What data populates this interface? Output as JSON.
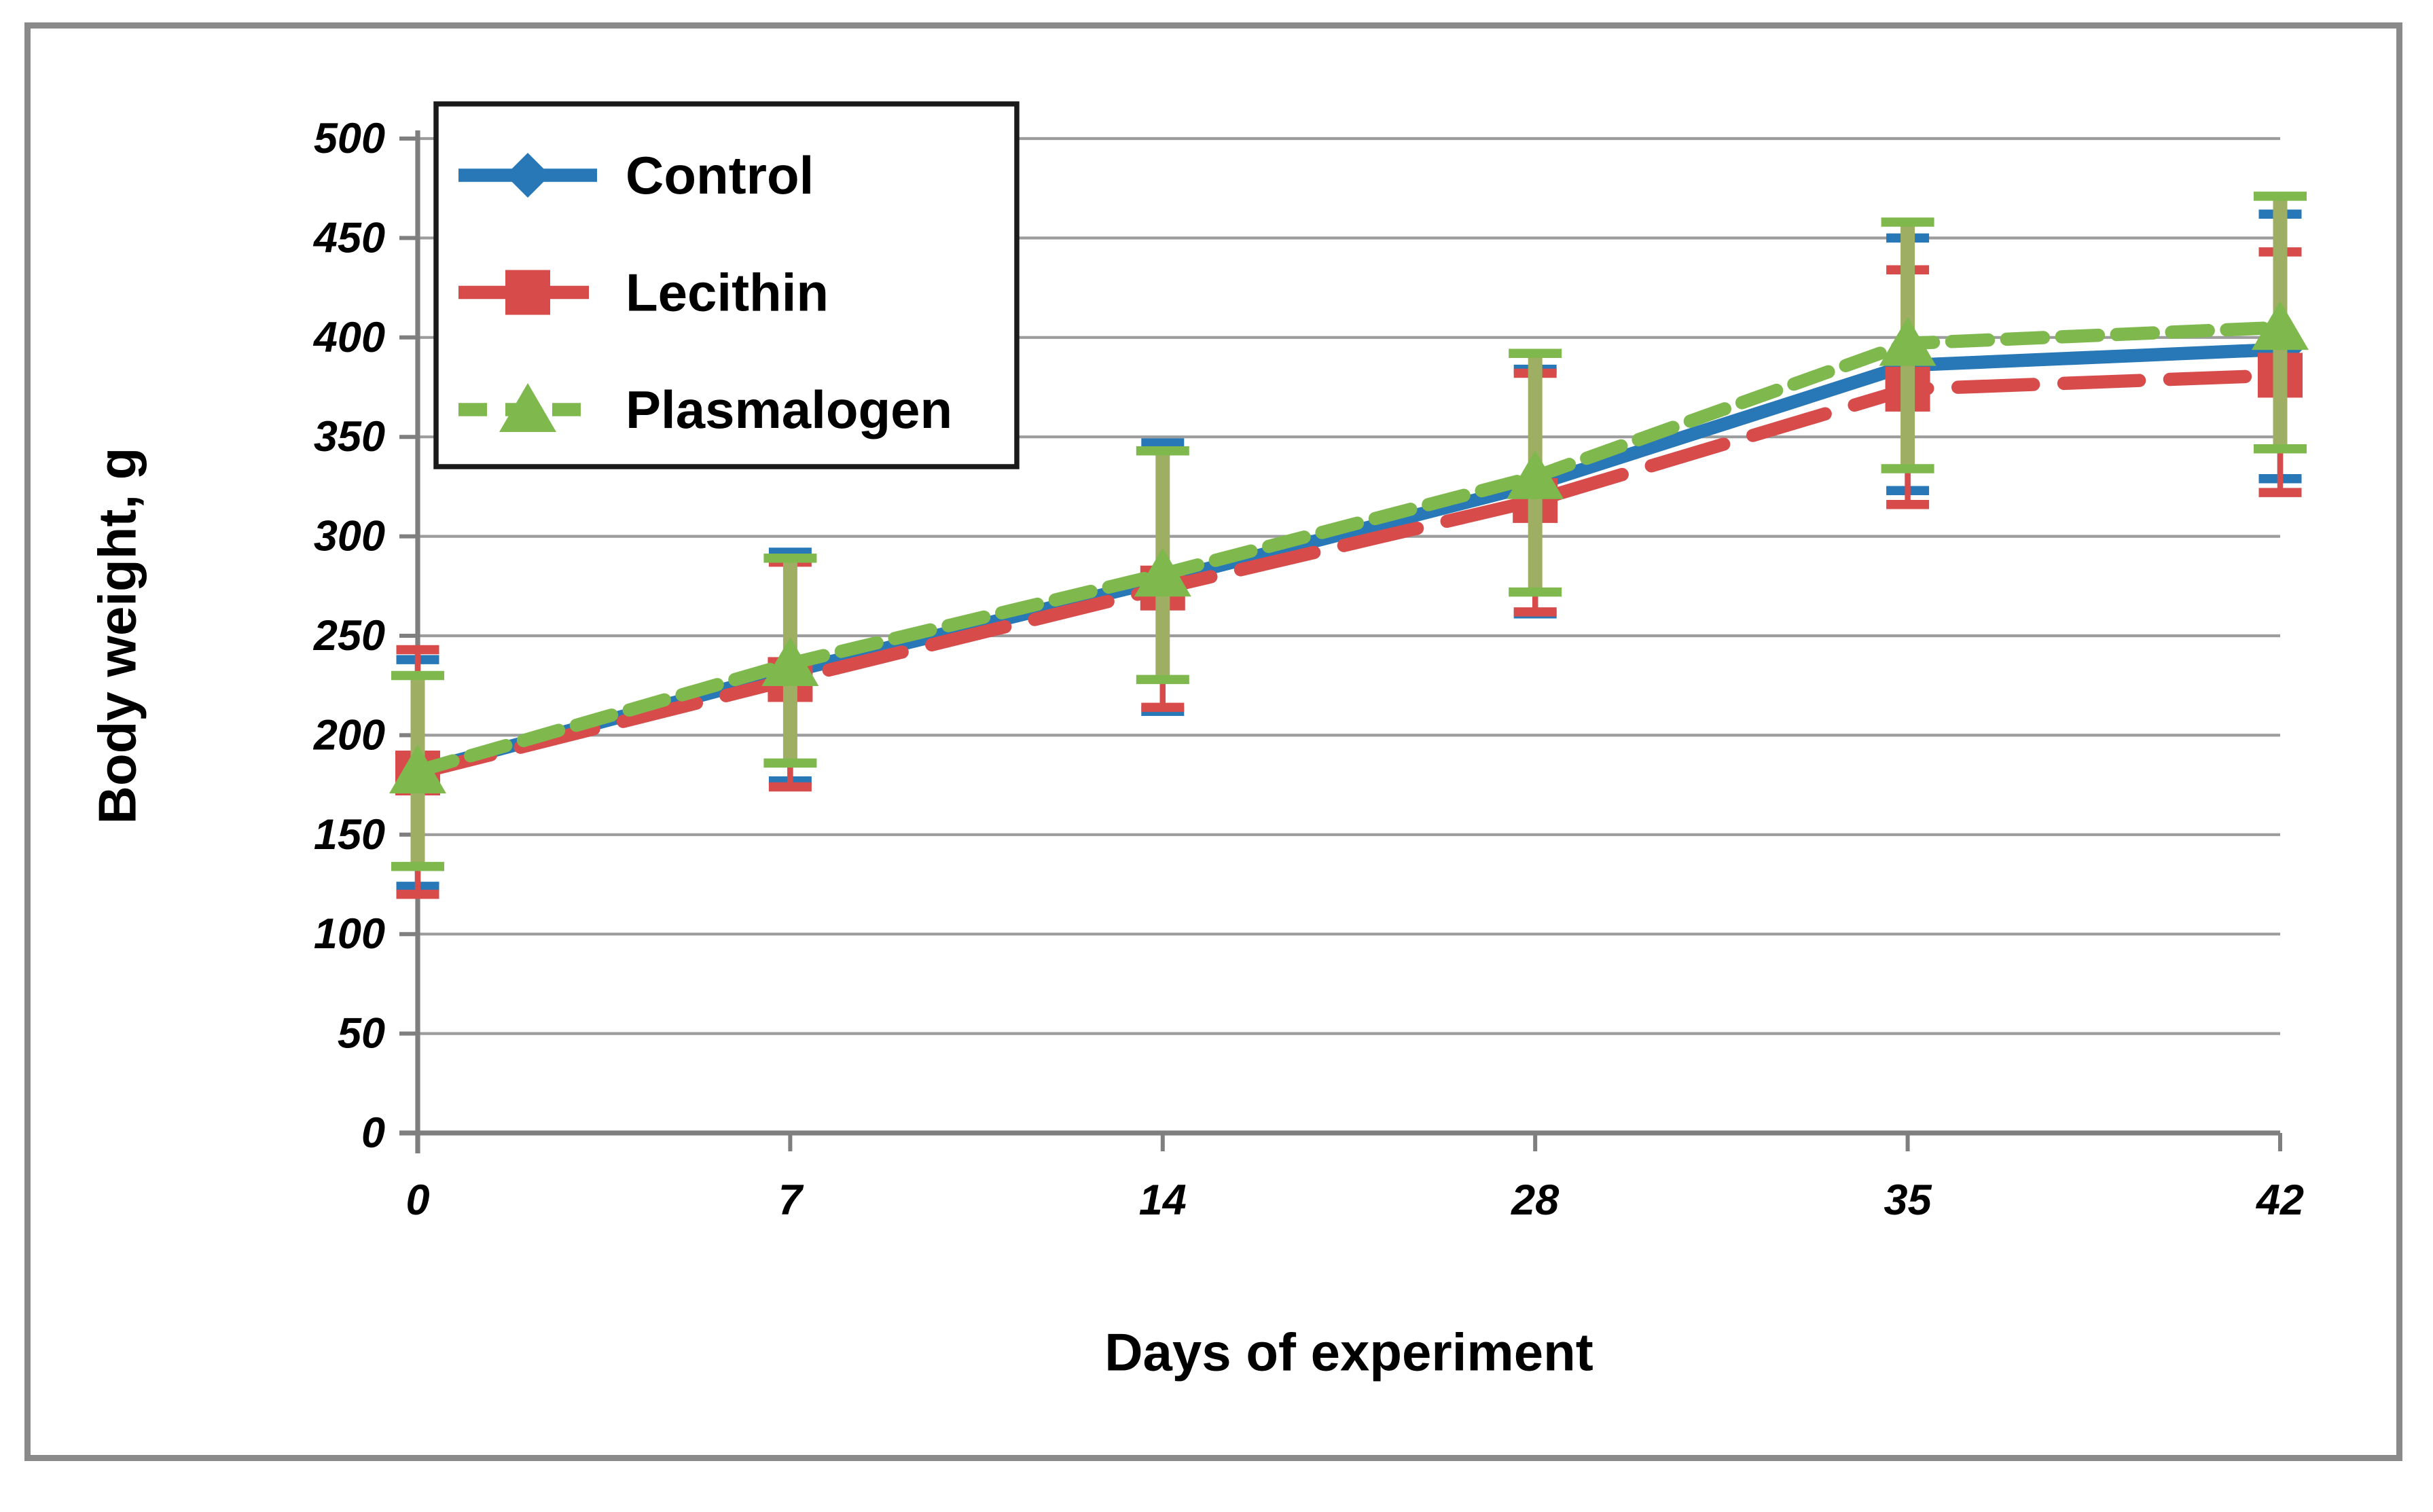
{
  "frame": {
    "border_color": "#8a8a8a",
    "background": "#ffffff"
  },
  "axes": {
    "x_title": "Days of experiment",
    "y_title": "Body weight, g",
    "grid_color": "#9c9c9c",
    "axis_color": "#7f7f7f",
    "tick_label_color": "#000000"
  },
  "legend": {
    "position": "top-left-inside",
    "border_color": "#1a1a1a",
    "background": "#ffffff"
  },
  "chart_data": {
    "type": "line",
    "title": "",
    "xlabel": "Days of experiment",
    "ylabel": "Body weight, g",
    "x_categories": [
      "0",
      "7",
      "14",
      "28",
      "35",
      "42"
    ],
    "y_axis": {
      "min": 0,
      "max": 500,
      "step": 50
    },
    "grid": true,
    "legend_position": "top-left-inside",
    "series": [
      {
        "name": "Control",
        "color": "#2878b8",
        "marker": "diamond",
        "line_style": "solid",
        "values": [
          182,
          232,
          278,
          326,
          386,
          394
        ],
        "error_top": [
          238,
          292,
          347,
          384,
          450,
          462
        ],
        "error_bottom": [
          124,
          177,
          212,
          261,
          323,
          329
        ]
      },
      {
        "name": "Lecithin",
        "color": "#d84b4b",
        "marker": "square",
        "line_style": "long-dash",
        "values": [
          181,
          228,
          274,
          318,
          374,
          381
        ],
        "error_top": [
          243,
          287,
          343,
          382,
          434,
          443
        ],
        "error_bottom": [
          120,
          174,
          214,
          262,
          316,
          322
        ]
      },
      {
        "name": "Plasmalogen",
        "color": "#7fb94e",
        "error_line_color": "#9eae63",
        "marker": "triangle",
        "line_style": "short-dash",
        "values": [
          182,
          236,
          281,
          330,
          397,
          405
        ],
        "error_top": [
          230,
          289,
          343,
          392,
          458,
          471
        ],
        "error_bottom": [
          134,
          186,
          228,
          272,
          334,
          344
        ]
      }
    ]
  }
}
